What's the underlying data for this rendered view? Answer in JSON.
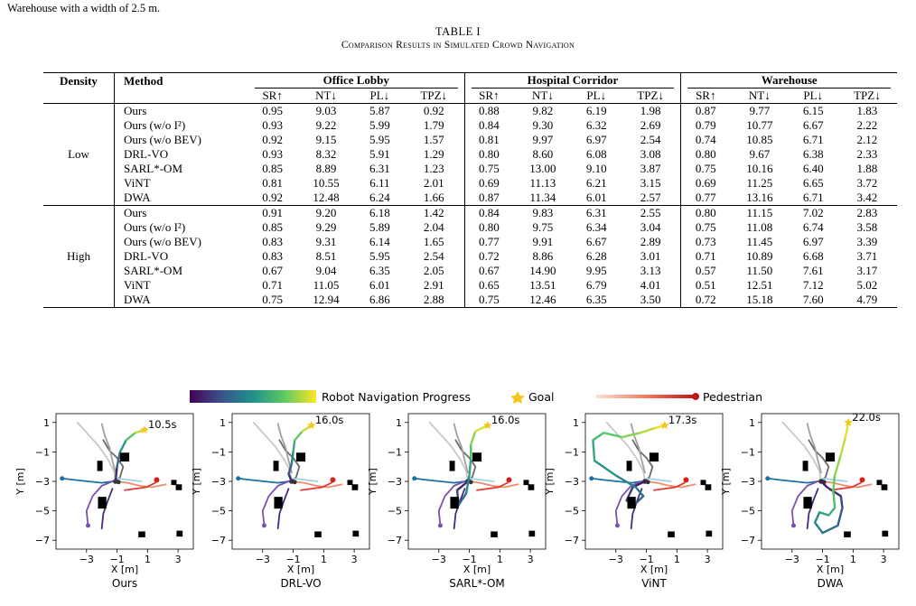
{
  "top_text": "Warehouse with a width of 2.5 m.",
  "table": {
    "caption_num": "TABLE I",
    "caption_title": "Comparison Results in Simulated Crowd Navigation",
    "col_density": "Density",
    "col_method": "Method",
    "scenarios": [
      "Office Lobby",
      "Hospital Corridor",
      "Warehouse"
    ],
    "metrics": [
      "SR↑",
      "NT↓",
      "PL↓",
      "TPZ↓"
    ],
    "groups": [
      {
        "density": "Low",
        "rows": [
          {
            "method": "Ours",
            "bold_method": true,
            "vals": [
              "0.95",
              "9.03",
              "5.87",
              "0.92",
              "0.88",
              "9.82",
              "6.19",
              "1.98",
              "0.87",
              "9.77",
              "6.15",
              "1.83"
            ],
            "bold": [
              0,
              2,
              3,
              4,
              7,
              8,
              10,
              11
            ]
          },
          {
            "method": "Ours (w/o I²)",
            "bold_method": true,
            "vals": [
              "0.93",
              "9.22",
              "5.99",
              "1.79",
              "0.84",
              "9.30",
              "6.32",
              "2.69",
              "0.79",
              "10.77",
              "6.67",
              "2.22"
            ],
            "bold": []
          },
          {
            "method": "Ours (w/o BEV)",
            "bold_method": true,
            "vals": [
              "0.92",
              "9.15",
              "5.95",
              "1.57",
              "0.81",
              "9.97",
              "6.97",
              "2.54",
              "0.74",
              "10.85",
              "6.71",
              "2.12"
            ],
            "bold": []
          },
          {
            "method": "DRL-VO",
            "bold_method": false,
            "vals": [
              "0.93",
              "8.32",
              "5.91",
              "1.29",
              "0.80",
              "8.60",
              "6.08",
              "3.08",
              "0.80",
              "9.67",
              "6.38",
              "2.33"
            ],
            "bold": [
              1,
              5,
              6,
              9
            ]
          },
          {
            "method": "SARL*-OM",
            "bold_method": false,
            "vals": [
              "0.85",
              "8.89",
              "6.31",
              "1.23",
              "0.75",
              "13.00",
              "9.10",
              "3.87",
              "0.75",
              "10.16",
              "6.40",
              "1.88"
            ],
            "bold": []
          },
          {
            "method": "ViNT",
            "bold_method": false,
            "vals": [
              "0.81",
              "10.55",
              "6.11",
              "2.01",
              "0.69",
              "11.13",
              "6.21",
              "3.15",
              "0.69",
              "11.25",
              "6.65",
              "3.72"
            ],
            "bold": []
          },
          {
            "method": "DWA",
            "bold_method": false,
            "vals": [
              "0.92",
              "12.48",
              "6.24",
              "1.66",
              "0.87",
              "11.34",
              "6.01",
              "2.57",
              "0.77",
              "13.16",
              "6.71",
              "3.42"
            ],
            "bold": []
          }
        ]
      },
      {
        "density": "High",
        "rows": [
          {
            "method": "Ours",
            "bold_method": true,
            "vals": [
              "0.91",
              "9.20",
              "6.18",
              "1.42",
              "0.84",
              "9.83",
              "6.31",
              "2.55",
              "0.80",
              "11.15",
              "7.02",
              "2.83"
            ],
            "bold": [
              0,
              3,
              4,
              7,
              8,
              11
            ]
          },
          {
            "method": "Ours (w/o I²)",
            "bold_method": true,
            "vals": [
              "0.85",
              "9.29",
              "5.89",
              "2.04",
              "0.80",
              "9.75",
              "6.34",
              "3.04",
              "0.75",
              "11.08",
              "6.74",
              "3.58"
            ],
            "bold": []
          },
          {
            "method": "Ours (w/o BEV)",
            "bold_method": true,
            "vals": [
              "0.83",
              "9.31",
              "6.14",
              "1.65",
              "0.77",
              "9.91",
              "6.67",
              "2.89",
              "0.73",
              "11.45",
              "6.97",
              "3.39"
            ],
            "bold": []
          },
          {
            "method": "DRL-VO",
            "bold_method": false,
            "vals": [
              "0.83",
              "8.51",
              "5.95",
              "2.54",
              "0.72",
              "8.86",
              "6.28",
              "3.01",
              "0.71",
              "10.89",
              "6.68",
              "3.71"
            ],
            "bold": [
              1,
              2,
              5,
              6,
              9,
              10
            ]
          },
          {
            "method": "SARL*-OM",
            "bold_method": false,
            "vals": [
              "0.67",
              "9.04",
              "6.35",
              "2.05",
              "0.67",
              "14.90",
              "9.95",
              "3.13",
              "0.57",
              "11.50",
              "7.61",
              "3.17"
            ],
            "bold": []
          },
          {
            "method": "ViNT",
            "bold_method": false,
            "vals": [
              "0.71",
              "11.05",
              "6.01",
              "2.91",
              "0.65",
              "13.51",
              "6.79",
              "4.01",
              "0.51",
              "12.51",
              "7.12",
              "5.02"
            ],
            "bold": []
          },
          {
            "method": "DWA",
            "bold_method": false,
            "vals": [
              "0.75",
              "12.94",
              "6.86",
              "2.88",
              "0.75",
              "12.46",
              "6.35",
              "3.50",
              "0.72",
              "15.18",
              "7.60",
              "4.79"
            ],
            "bold": []
          }
        ]
      }
    ]
  },
  "figure": {
    "legend": {
      "progress": "Robot Navigation Progress",
      "goal": "Goal",
      "pedestrian": "Pedestrian"
    },
    "colors": {
      "goal_star": "#f5c518",
      "pedestrian_dot": "#d62020",
      "obstacle": "#000000"
    },
    "axes": {
      "xlabel": "X [m]",
      "ylabel": "Y [m]",
      "xticks": [
        "−3",
        "−1",
        "1",
        "3"
      ],
      "yticks": [
        "1",
        "−1",
        "−3",
        "−5",
        "−7"
      ]
    },
    "panels": [
      {
        "name": "Ours",
        "time": "10.5s",
        "variant": "ours"
      },
      {
        "name": "DRL-VO",
        "time": "16.0s",
        "variant": "drlvo"
      },
      {
        "name": "SARL*-OM",
        "time": "16.0s",
        "variant": "sarl"
      },
      {
        "name": "ViNT",
        "time": "17.3s",
        "variant": "vint"
      },
      {
        "name": "DWA",
        "time": "22.0s",
        "variant": "dwa"
      }
    ]
  }
}
